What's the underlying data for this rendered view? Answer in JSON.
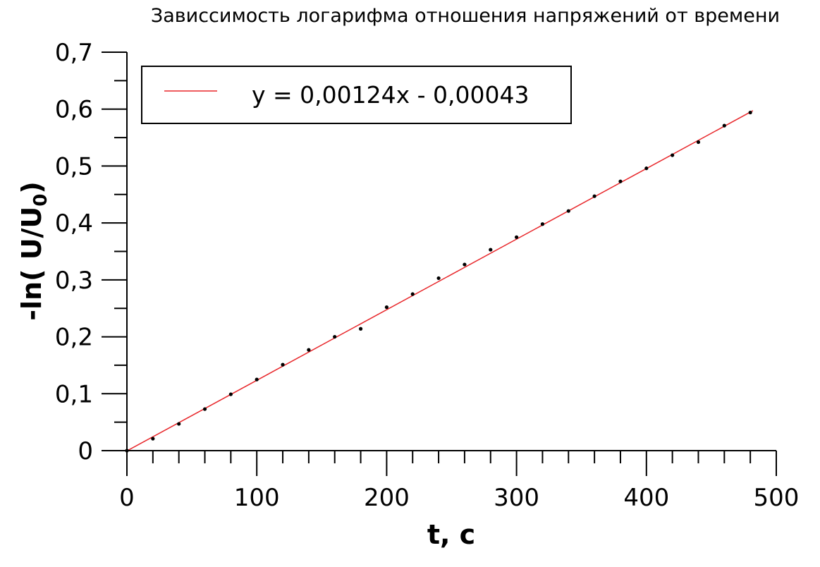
{
  "chart_data": {
    "type": "scatter",
    "title": "Зависсимость логарифма отношения напряжений от времени",
    "xlabel": "t, c",
    "ylabel": "-ln( U/U",
    "ylabel_subscript": "0",
    "ylabel_close": ")",
    "xlim": [
      0,
      500
    ],
    "ylim": [
      0,
      0.7
    ],
    "x_ticks": [
      0,
      100,
      200,
      300,
      400,
      500
    ],
    "x_tick_labels": [
      "0",
      "100",
      "200",
      "300",
      "400",
      "500"
    ],
    "y_ticks": [
      0,
      0.1,
      0.2,
      0.3,
      0.4,
      0.5,
      0.6,
      0.7
    ],
    "y_tick_labels": [
      "0",
      "0,1",
      "0,2",
      "0,3",
      "0,4",
      "0,5",
      "0,6",
      "0,7"
    ],
    "grid": false,
    "legend_position": "top-left",
    "series": [
      {
        "kind": "points",
        "color": "#000000",
        "x": [
          0,
          20,
          40,
          60,
          80,
          100,
          120,
          140,
          160,
          180,
          200,
          220,
          240,
          260,
          280,
          300,
          320,
          340,
          360,
          380,
          400,
          420,
          440,
          460,
          480
        ],
        "y": [
          0,
          0.021,
          0.047,
          0.073,
          0.099,
          0.125,
          0.151,
          0.177,
          0.2,
          0.214,
          0.252,
          0.275,
          0.303,
          0.327,
          0.353,
          0.375,
          0.398,
          0.421,
          0.447,
          0.473,
          0.496,
          0.519,
          0.542,
          0.571,
          0.594
        ]
      },
      {
        "kind": "fit",
        "name": "y = 0,00124x - 0,00043",
        "color": "#e8262a",
        "slope": 0.00124,
        "intercept": -0.00043,
        "x_range": [
          0,
          482
        ]
      }
    ]
  }
}
